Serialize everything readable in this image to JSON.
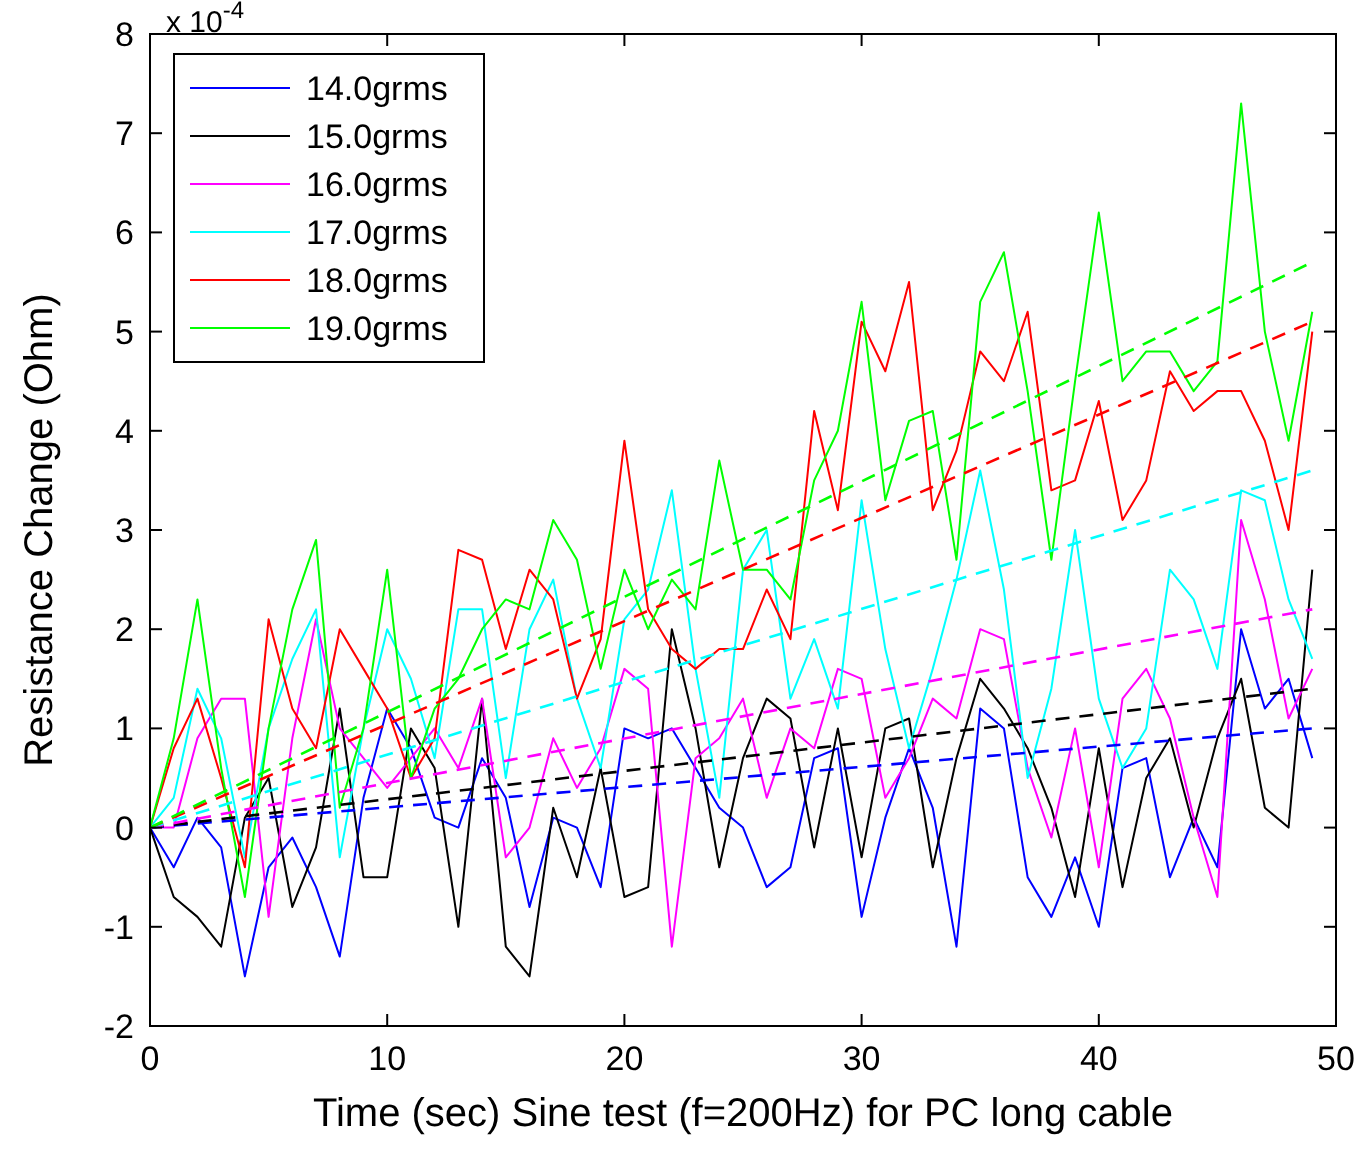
{
  "chart_data": {
    "type": "line",
    "xlabel": "Time (sec)   Sine test (f=200Hz) for PC long cable",
    "ylabel": "Resistance Change (Ohm)",
    "annotations": [
      "x 10$^{-4}$"
    ],
    "x": [
      0,
      1,
      2,
      3,
      4,
      5,
      6,
      7,
      8,
      9,
      10,
      11,
      12,
      13,
      14,
      15,
      16,
      17,
      18,
      19,
      20,
      21,
      22,
      23,
      24,
      25,
      26,
      27,
      28,
      29,
      30,
      31,
      32,
      33,
      34,
      35,
      36,
      37,
      38,
      39,
      40,
      41,
      42,
      43,
      44,
      45,
      46,
      47,
      48,
      49
    ],
    "xlim": [
      0,
      50
    ],
    "xticks": [
      0,
      10,
      20,
      30,
      40,
      50
    ],
    "ylim": [
      -2,
      8
    ],
    "yticks": [
      -2,
      -1,
      0,
      1,
      2,
      3,
      4,
      5,
      6,
      7,
      8
    ],
    "grid": false,
    "legend": "top left",
    "line_style": "solid",
    "marker": "none",
    "series": [
      {
        "name": "14.0grms",
        "color": "#0000ff",
        "values": [
          0,
          -0.4,
          0.1,
          -0.2,
          -1.5,
          -0.4,
          -0.1,
          -0.6,
          -1.3,
          0.3,
          1.2,
          0.8,
          0.1,
          0,
          0.7,
          0.3,
          -0.8,
          0.1,
          0,
          -0.6,
          1.0,
          0.9,
          1.0,
          0.6,
          0.2,
          0,
          -0.6,
          -0.4,
          0.7,
          0.8,
          -0.9,
          0.1,
          0.8,
          0.2,
          -1.2,
          1.2,
          1.0,
          -0.5,
          -0.9,
          -0.3,
          -1.0,
          0.6,
          0.7,
          -0.5,
          0.1,
          -0.4,
          2.0,
          1.2,
          1.5,
          0.7
        ]
      },
      {
        "name": "15.0grms",
        "color": "#000000",
        "values": [
          0,
          -0.7,
          -0.9,
          -1.2,
          0.1,
          0.5,
          -0.8,
          -0.2,
          1.2,
          -0.5,
          -0.5,
          1.0,
          0.6,
          -1.0,
          1.3,
          -1.2,
          -1.5,
          0.2,
          -0.5,
          0.6,
          -0.7,
          -0.6,
          2.0,
          1.0,
          -0.4,
          0.7,
          1.3,
          1.1,
          -0.2,
          1.0,
          -0.3,
          1.0,
          1.1,
          -0.4,
          0.7,
          1.5,
          1.2,
          0.8,
          0.2,
          -0.7,
          0.8,
          -0.6,
          0.5,
          0.9,
          0,
          0.9,
          1.5,
          0.2,
          0,
          2.6
        ]
      },
      {
        "name": "16.0grms",
        "color": "#ff00ff",
        "values": [
          0,
          0,
          0.9,
          1.3,
          1.3,
          -0.9,
          0.9,
          2.1,
          1.0,
          0.7,
          0.4,
          0.7,
          1.0,
          0.6,
          1.3,
          -0.3,
          0,
          0.9,
          0.4,
          0.8,
          1.6,
          1.4,
          -1.2,
          0.7,
          0.9,
          1.3,
          0.3,
          1.0,
          0.8,
          1.6,
          1.5,
          0.3,
          0.7,
          1.3,
          1.1,
          2.0,
          1.9,
          0.6,
          -0.1,
          1.0,
          -0.4,
          1.3,
          1.6,
          1.1,
          0.1,
          -0.7,
          3.1,
          2.3,
          1.1,
          1.6
        ]
      },
      {
        "name": "17.0grms",
        "color": "#00ffff",
        "values": [
          0,
          0.3,
          1.4,
          0.9,
          -0.3,
          1.0,
          1.7,
          2.2,
          -0.3,
          1.0,
          2.0,
          1.5,
          0.7,
          2.2,
          2.2,
          0.5,
          2.0,
          2.5,
          1.3,
          0.6,
          2.1,
          2.4,
          3.4,
          1.6,
          0.3,
          2.6,
          3.0,
          1.3,
          1.9,
          1.2,
          3.3,
          1.8,
          0.8,
          1.6,
          2.5,
          3.6,
          2.4,
          0.5,
          1.4,
          3.0,
          1.3,
          0.6,
          1.0,
          2.6,
          2.3,
          1.6,
          3.4,
          3.3,
          2.3,
          1.7
        ]
      },
      {
        "name": "18.0grms",
        "color": "#ff0000",
        "values": [
          0,
          0.8,
          1.3,
          0.5,
          -0.4,
          2.1,
          1.2,
          0.8,
          2.0,
          1.6,
          1.2,
          0.5,
          0.9,
          2.8,
          2.7,
          1.8,
          2.6,
          2.3,
          1.3,
          1.9,
          3.9,
          2.2,
          1.8,
          1.6,
          1.8,
          1.8,
          2.4,
          1.9,
          4.2,
          3.2,
          5.1,
          4.6,
          5.5,
          3.2,
          3.8,
          4.8,
          4.5,
          5.2,
          3.4,
          3.5,
          4.3,
          3.1,
          3.5,
          4.6,
          4.2,
          4.4,
          4.4,
          3.9,
          3.0,
          5.0
        ]
      },
      {
        "name": "19.0grms",
        "color": "#00ff00",
        "values": [
          0,
          0.9,
          2.3,
          0.6,
          -0.7,
          1.0,
          2.2,
          2.9,
          0.2,
          1.0,
          2.6,
          0.5,
          1.2,
          1.5,
          2.0,
          2.3,
          2.2,
          3.1,
          2.7,
          1.6,
          2.6,
          2.0,
          2.5,
          2.2,
          3.7,
          2.6,
          2.6,
          2.3,
          3.5,
          4.0,
          5.3,
          3.3,
          4.1,
          4.2,
          2.7,
          5.3,
          5.8,
          4.4,
          2.7,
          4.5,
          6.2,
          4.5,
          4.8,
          4.8,
          4.4,
          4.7,
          7.3,
          5.0,
          3.9,
          5.2
        ]
      },
      {
        "type": "line",
        "values": [
          0,
          null,
          null,
          null,
          null,
          null,
          null,
          null,
          null,
          null,
          null,
          null,
          null,
          null,
          null,
          null,
          null,
          null,
          null,
          null,
          null,
          null,
          null,
          null,
          null,
          null,
          null,
          null,
          null,
          null,
          null,
          null,
          null,
          null,
          null,
          null,
          null,
          null,
          null,
          null,
          null,
          null,
          null,
          null,
          null,
          null,
          null,
          null,
          null,
          1.0
        ],
        "color": "#0000ff",
        "line_style": "dashed"
      },
      {
        "type": "line",
        "values": [
          0,
          null,
          null,
          null,
          null,
          null,
          null,
          null,
          null,
          null,
          null,
          null,
          null,
          null,
          null,
          null,
          null,
          null,
          null,
          null,
          null,
          null,
          null,
          null,
          null,
          null,
          null,
          null,
          null,
          null,
          null,
          null,
          null,
          null,
          null,
          null,
          null,
          null,
          null,
          null,
          null,
          null,
          null,
          null,
          null,
          null,
          null,
          null,
          null,
          1.4
        ],
        "color": "#000000",
        "line_style": "dashed"
      },
      {
        "type": "line",
        "values": [
          0,
          null,
          null,
          null,
          null,
          null,
          null,
          null,
          null,
          null,
          null,
          null,
          null,
          null,
          null,
          null,
          null,
          null,
          null,
          null,
          null,
          null,
          null,
          null,
          null,
          null,
          null,
          null,
          null,
          null,
          null,
          null,
          null,
          null,
          null,
          null,
          null,
          null,
          null,
          null,
          null,
          null,
          null,
          null,
          null,
          null,
          null,
          null,
          null,
          2.2
        ],
        "color": "#ff00ff",
        "line_style": "dashed"
      },
      {
        "type": "line",
        "values": [
          0,
          null,
          null,
          null,
          null,
          null,
          null,
          null,
          null,
          null,
          null,
          null,
          null,
          null,
          null,
          null,
          null,
          null,
          null,
          null,
          null,
          null,
          null,
          null,
          null,
          null,
          null,
          null,
          null,
          null,
          null,
          null,
          null,
          null,
          null,
          null,
          null,
          null,
          null,
          null,
          null,
          null,
          null,
          null,
          null,
          null,
          null,
          null,
          null,
          3.6
        ],
        "color": "#00ffff",
        "line_style": "dashed"
      },
      {
        "type": "line",
        "values": [
          0,
          null,
          null,
          null,
          null,
          null,
          null,
          null,
          null,
          null,
          null,
          null,
          null,
          null,
          null,
          null,
          null,
          null,
          null,
          null,
          null,
          null,
          null,
          null,
          null,
          null,
          null,
          null,
          null,
          null,
          null,
          null,
          null,
          null,
          null,
          null,
          null,
          null,
          null,
          null,
          null,
          null,
          null,
          null,
          null,
          null,
          null,
          null,
          null,
          5.1
        ],
        "color": "#ff0000",
        "line_style": "dashed"
      },
      {
        "type": "line",
        "values": [
          0,
          null,
          null,
          null,
          null,
          null,
          null,
          null,
          null,
          null,
          null,
          null,
          null,
          null,
          null,
          null,
          null,
          null,
          null,
          null,
          null,
          null,
          null,
          null,
          null,
          null,
          null,
          null,
          null,
          null,
          null,
          null,
          null,
          null,
          null,
          null,
          null,
          null,
          null,
          null,
          null,
          null,
          null,
          null,
          null,
          null,
          null,
          null,
          null,
          5.7
        ],
        "color": "#00ff00",
        "line_style": "dashed"
      }
    ]
  }
}
